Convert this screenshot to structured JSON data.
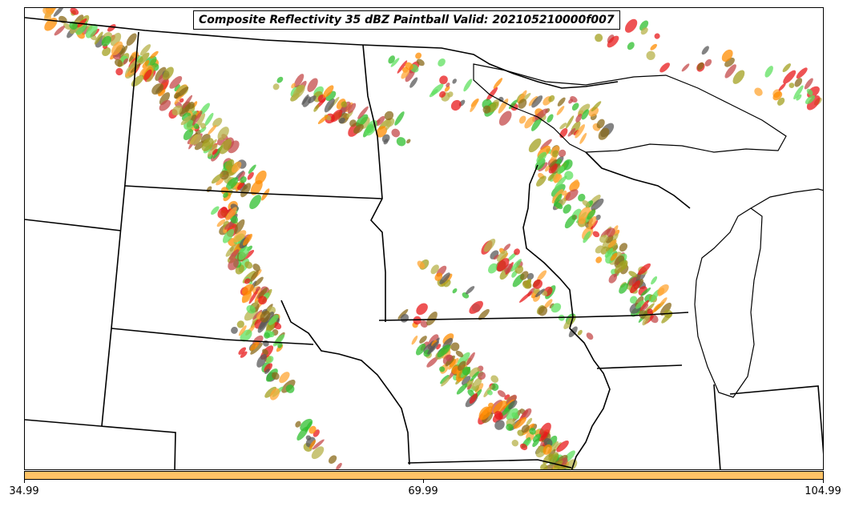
{
  "map": {
    "title": "Composite Reflectivity 35 dBZ Paintball Valid: 202105210000f007",
    "region": "Upper Midwest / Northern Plains",
    "paintball_colors": [
      "#e8191b",
      "#ff8c00",
      "#ffa633",
      "#2fbf2f",
      "#5fe05f",
      "#a3a020",
      "#c44a4a",
      "#5a5a5a",
      "#8a6a1a",
      "#b7b24a"
    ],
    "boundary_color": "#000000"
  },
  "colorbar": {
    "color": "#ffc266",
    "ticks": [
      "34.99",
      "69.99",
      "104.99"
    ]
  }
}
